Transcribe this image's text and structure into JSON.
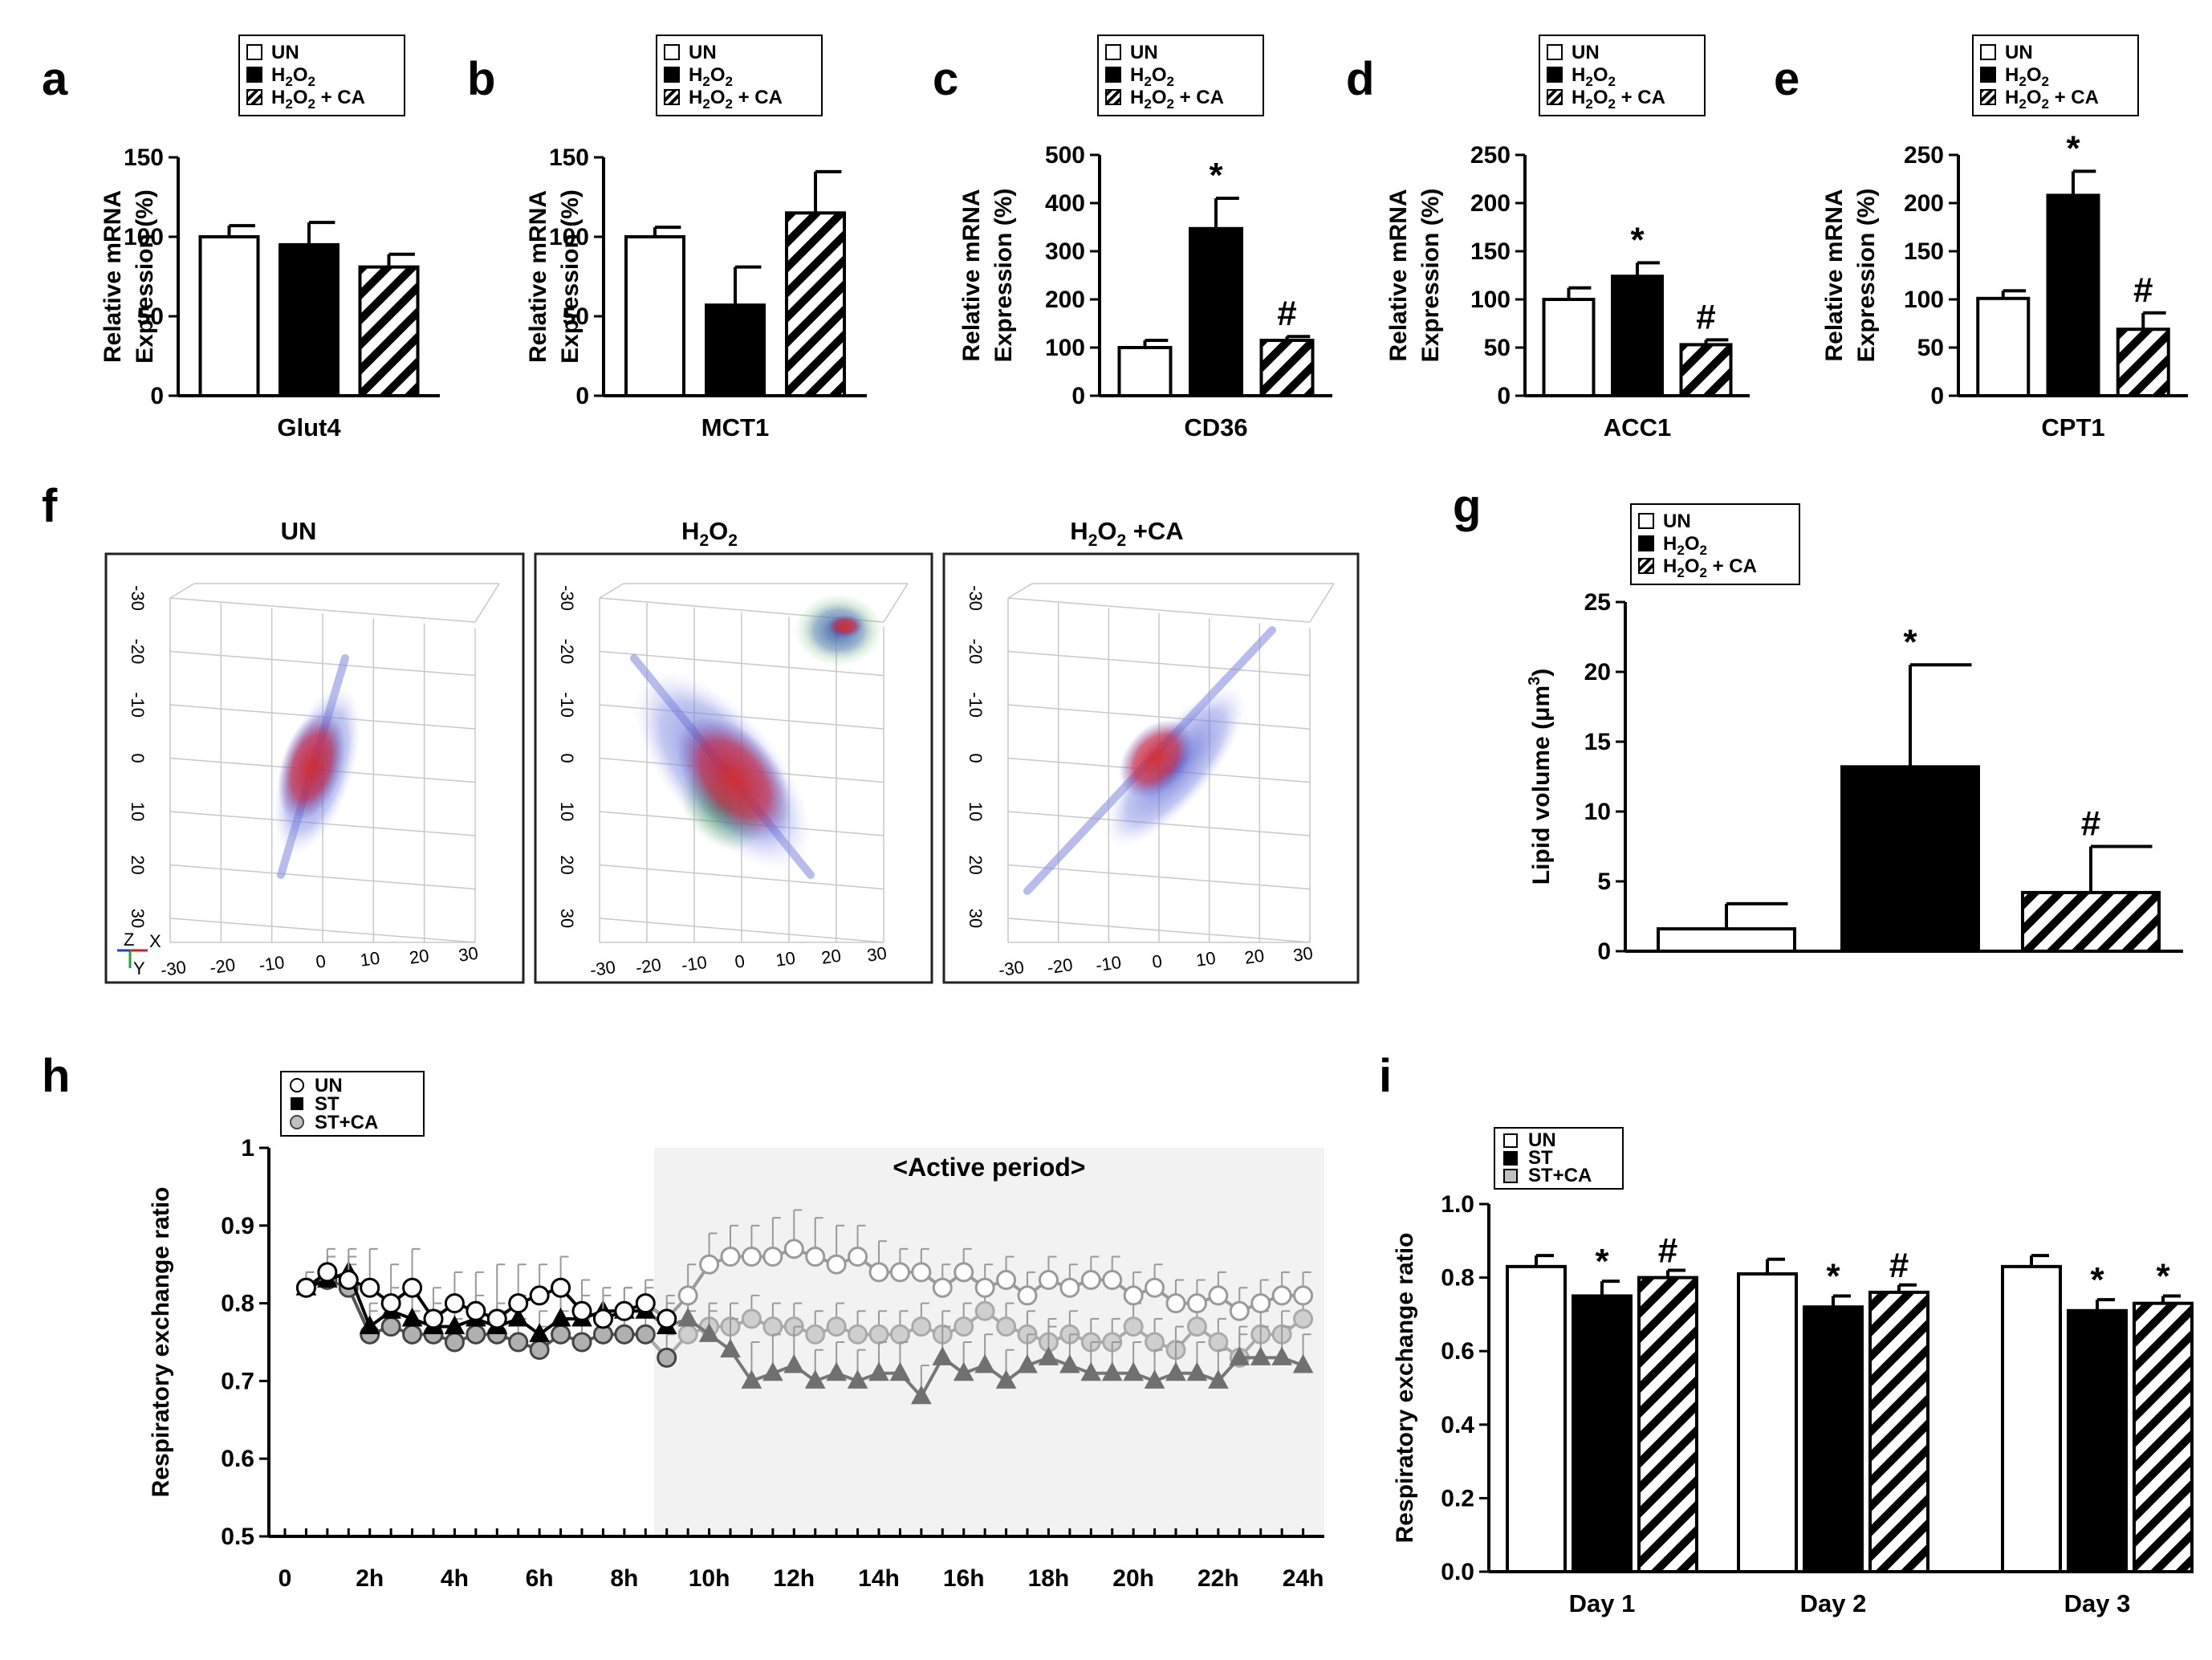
{
  "colors": {
    "UN": "#ffffff",
    "H2O2": "#000000",
    "H2O2+CA": "hatch",
    "ST": "#000000",
    "ST+CA": "#c0c0c0",
    "line_UN": "#9a9a9a",
    "line_ST": "#000000",
    "line_ST_CA": "#808080",
    "active_shade": "#f2f2f2",
    "lipid": "#d92020",
    "nucleus": "#3a4fd0",
    "mito": "#3aa040"
  },
  "legend_abcdeg": [
    {
      "key": "UN",
      "label": "UN"
    },
    {
      "key": "H2O2",
      "label": "H",
      "sub": "2",
      "rest": "O",
      "sub2": "2",
      "suffix": ""
    },
    {
      "key": "H2O2+CA",
      "label": "H",
      "sub": "2",
      "rest": "O",
      "sub2": "2",
      "suffix": " + CA"
    }
  ],
  "legend_hi": [
    {
      "key": "UN",
      "label": "UN"
    },
    {
      "key": "ST",
      "label": "ST"
    },
    {
      "key": "ST+CA",
      "label": "ST+CA"
    }
  ],
  "chart_data": [
    {
      "panel": "a",
      "type": "bar",
      "category": "Glut4",
      "ylabel_line1": "Relative mRNA",
      "ylabel_line2": "Expression (%)",
      "ylim": [
        0,
        150
      ],
      "yticks": [
        0,
        50,
        100,
        150
      ],
      "groups": [
        "UN",
        "H2O2",
        "H2O2+CA"
      ],
      "values": [
        100,
        95,
        81
      ],
      "errors": [
        7,
        14,
        8
      ],
      "annotations": [
        "",
        "",
        ""
      ]
    },
    {
      "panel": "b",
      "type": "bar",
      "category": "MCT1",
      "ylabel_line1": "Relative mRNA",
      "ylabel_line2": "Expression (%)",
      "ylim": [
        0,
        150
      ],
      "yticks": [
        0,
        50,
        100,
        150
      ],
      "groups": [
        "UN",
        "H2O2",
        "H2O2+CA"
      ],
      "values": [
        100,
        57,
        115
      ],
      "errors": [
        6,
        24,
        26
      ],
      "annotations": [
        "",
        "",
        ""
      ]
    },
    {
      "panel": "c",
      "type": "bar",
      "category": "CD36",
      "ylabel_line1": "Relative mRNA",
      "ylabel_line2": "Expression (%)",
      "ylim": [
        0,
        500
      ],
      "yticks": [
        0,
        100,
        200,
        300,
        400,
        500
      ],
      "groups": [
        "UN",
        "H2O2",
        "H2O2+CA"
      ],
      "values": [
        100,
        347,
        115
      ],
      "errors": [
        15,
        63,
        8
      ],
      "annotations": [
        "",
        "*",
        "#"
      ]
    },
    {
      "panel": "d",
      "type": "bar",
      "category": "ACC1",
      "ylabel_line1": "Relative mRNA",
      "ylabel_line2": "Expression (%)",
      "ylim": [
        0,
        250
      ],
      "yticks": [
        0,
        50,
        100,
        150,
        200,
        250
      ],
      "groups": [
        "UN",
        "H2O2",
        "H2O2+CA"
      ],
      "values": [
        100,
        124,
        53
      ],
      "errors": [
        12,
        14,
        5
      ],
      "annotations": [
        "",
        "*",
        "#"
      ]
    },
    {
      "panel": "e",
      "type": "bar",
      "category": "CPT1",
      "ylabel_line1": "Relative mRNA",
      "ylabel_line2": "Expression (%)",
      "ylim": [
        0,
        250
      ],
      "yticks": [
        0,
        50,
        100,
        150,
        200,
        250
      ],
      "groups": [
        "UN",
        "H2O2",
        "H2O2+CA"
      ],
      "values": [
        101,
        208,
        69
      ],
      "errors": [
        8,
        25,
        17
      ],
      "annotations": [
        "",
        "*",
        "#"
      ]
    },
    {
      "panel": "g",
      "type": "bar",
      "category": "",
      "ylabel_line1": "Lipid volume (μm",
      "ylabel_sup": "3",
      "ylabel_end": ")",
      "ylim": [
        0,
        25
      ],
      "yticks": [
        0,
        5,
        10,
        15,
        20,
        25
      ],
      "groups": [
        "UN",
        "H2O2",
        "H2O2+CA"
      ],
      "values": [
        1.6,
        13.2,
        4.2
      ],
      "errors": [
        1.8,
        7.3,
        3.3
      ],
      "annotations": [
        "",
        "*",
        "#"
      ]
    },
    {
      "panel": "h",
      "type": "line",
      "ylabel": "Respiratory exchange ratio",
      "ylim": [
        0.5,
        1.0
      ],
      "yticks": [
        "0.5",
        "0.6",
        "0.7",
        "0.8",
        "0.9",
        "1"
      ],
      "xlim": [
        0,
        24.5
      ],
      "xtick_values": [
        0,
        2,
        4,
        6,
        8,
        10,
        12,
        14,
        16,
        18,
        20,
        22,
        24
      ],
      "xtick_labels": [
        "0",
        "2h",
        "4h",
        "6h",
        "8h",
        "10h",
        "12h",
        "14h",
        "16h",
        "18h",
        "20h",
        "22h",
        "24h"
      ],
      "active_period": {
        "start": 8.7,
        "end": 24.5,
        "label": "<Active period>"
      },
      "series": [
        {
          "name": "UN",
          "marker": "circle-open",
          "x": [
            0.5,
            1,
            1.5,
            2,
            2.5,
            3,
            3.5,
            4,
            4.5,
            5,
            5.5,
            6,
            6.5,
            7,
            7.5,
            8,
            8.5,
            9,
            9.5,
            10,
            10.5,
            11,
            11.5,
            12,
            12.5,
            13,
            13.5,
            14,
            14.5,
            15,
            15.5,
            16,
            16.5,
            17,
            17.5,
            18,
            18.5,
            19,
            19.5,
            20,
            20.5,
            21,
            21.5,
            22,
            22.5,
            23,
            23.5,
            24
          ],
          "y": [
            0.82,
            0.84,
            0.83,
            0.82,
            0.8,
            0.82,
            0.78,
            0.8,
            0.79,
            0.78,
            0.8,
            0.81,
            0.82,
            0.79,
            0.78,
            0.79,
            0.8,
            0.78,
            0.81,
            0.85,
            0.86,
            0.86,
            0.86,
            0.87,
            0.86,
            0.85,
            0.86,
            0.84,
            0.84,
            0.84,
            0.82,
            0.84,
            0.82,
            0.83,
            0.81,
            0.83,
            0.82,
            0.83,
            0.83,
            0.81,
            0.82,
            0.8,
            0.8,
            0.81,
            0.79,
            0.8,
            0.81,
            0.81
          ],
          "err": [
            0.02,
            0.03,
            0.03,
            0.05,
            0.05,
            0.05,
            0.04,
            0.04,
            0.05,
            0.07,
            0.05,
            0.04,
            0.04,
            0.04,
            0.03,
            0.03,
            0.03,
            0.03,
            0.04,
            0.04,
            0.04,
            0.04,
            0.05,
            0.05,
            0.05,
            0.05,
            0.04,
            0.04,
            0.03,
            0.03,
            0.03,
            0.03,
            0.03,
            0.03,
            0.03,
            0.03,
            0.03,
            0.03,
            0.03,
            0.03,
            0.03,
            0.03,
            0.03,
            0.03,
            0.03,
            0.03,
            0.03,
            0.03
          ]
        },
        {
          "name": "ST",
          "marker": "triangle-filled",
          "x": [
            0.5,
            1,
            1.5,
            2,
            2.5,
            3,
            3.5,
            4,
            4.5,
            5,
            5.5,
            6,
            6.5,
            7,
            7.5,
            8,
            8.5,
            9,
            9.5,
            10,
            10.5,
            11,
            11.5,
            12,
            12.5,
            13,
            13.5,
            14,
            14.5,
            15,
            15.5,
            16,
            16.5,
            17,
            17.5,
            18,
            18.5,
            19,
            19.5,
            20,
            20.5,
            21,
            21.5,
            22,
            22.5,
            23,
            23.5,
            24
          ],
          "y": [
            0.82,
            0.83,
            0.84,
            0.77,
            0.79,
            0.78,
            0.77,
            0.77,
            0.78,
            0.77,
            0.78,
            0.76,
            0.78,
            0.78,
            0.79,
            0.79,
            0.79,
            0.77,
            0.78,
            0.76,
            0.74,
            0.7,
            0.71,
            0.72,
            0.7,
            0.71,
            0.7,
            0.71,
            0.71,
            0.68,
            0.73,
            0.71,
            0.72,
            0.7,
            0.72,
            0.73,
            0.72,
            0.71,
            0.71,
            0.71,
            0.7,
            0.71,
            0.71,
            0.7,
            0.73,
            0.73,
            0.73,
            0.72
          ],
          "err": [
            0.02,
            0.03,
            0.03,
            0.03,
            0.03,
            0.03,
            0.03,
            0.03,
            0.03,
            0.03,
            0.03,
            0.03,
            0.03,
            0.03,
            0.03,
            0.03,
            0.03,
            0.03,
            0.03,
            0.03,
            0.04,
            0.05,
            0.05,
            0.05,
            0.04,
            0.04,
            0.04,
            0.04,
            0.04,
            0.04,
            0.04,
            0.04,
            0.04,
            0.04,
            0.04,
            0.04,
            0.04,
            0.04,
            0.04,
            0.04,
            0.04,
            0.04,
            0.04,
            0.04,
            0.04,
            0.04,
            0.04,
            0.04
          ]
        },
        {
          "name": "ST+CA",
          "marker": "circle-gray",
          "x": [
            0.5,
            1,
            1.5,
            2,
            2.5,
            3,
            3.5,
            4,
            4.5,
            5,
            5.5,
            6,
            6.5,
            7,
            7.5,
            8,
            8.5,
            9,
            9.5,
            10,
            10.5,
            11,
            11.5,
            12,
            12.5,
            13,
            13.5,
            14,
            14.5,
            15,
            15.5,
            16,
            16.5,
            17,
            17.5,
            18,
            18.5,
            19,
            19.5,
            20,
            20.5,
            21,
            21.5,
            22,
            22.5,
            23,
            23.5,
            24
          ],
          "y": [
            0.82,
            0.83,
            0.82,
            0.76,
            0.77,
            0.76,
            0.76,
            0.75,
            0.76,
            0.76,
            0.75,
            0.74,
            0.76,
            0.75,
            0.76,
            0.76,
            0.76,
            0.73,
            0.76,
            0.77,
            0.77,
            0.78,
            0.77,
            0.77,
            0.76,
            0.77,
            0.76,
            0.76,
            0.76,
            0.77,
            0.76,
            0.77,
            0.79,
            0.77,
            0.76,
            0.75,
            0.76,
            0.75,
            0.75,
            0.77,
            0.75,
            0.74,
            0.77,
            0.75,
            0.73,
            0.76,
            0.76,
            0.78
          ],
          "err": [
            0.02,
            0.03,
            0.03,
            0.03,
            0.03,
            0.03,
            0.03,
            0.03,
            0.03,
            0.03,
            0.03,
            0.03,
            0.03,
            0.03,
            0.03,
            0.03,
            0.03,
            0.03,
            0.03,
            0.03,
            0.03,
            0.03,
            0.03,
            0.03,
            0.03,
            0.03,
            0.03,
            0.03,
            0.03,
            0.03,
            0.03,
            0.03,
            0.03,
            0.03,
            0.03,
            0.03,
            0.03,
            0.03,
            0.03,
            0.03,
            0.03,
            0.03,
            0.03,
            0.03,
            0.03,
            0.03,
            0.03,
            0.03
          ]
        }
      ]
    },
    {
      "panel": "i",
      "type": "bar",
      "ylabel": "Respiratory exchange ratio",
      "ylim": [
        0,
        1.0
      ],
      "yticks": [
        "0.0",
        "0.2",
        "0.4",
        "0.6",
        "0.8",
        "1.0"
      ],
      "categories": [
        "Day 1",
        "Day 2",
        "Day 3"
      ],
      "series": [
        {
          "name": "UN",
          "values": [
            0.83,
            0.81,
            0.83
          ],
          "errors": [
            0.03,
            0.04,
            0.03
          ],
          "annotations": [
            "",
            "",
            ""
          ]
        },
        {
          "name": "ST",
          "values": [
            0.75,
            0.72,
            0.71
          ],
          "errors": [
            0.04,
            0.03,
            0.03
          ],
          "annotations": [
            "*",
            "*",
            "*"
          ]
        },
        {
          "name": "ST+CA",
          "values": [
            0.8,
            0.76,
            0.73
          ],
          "errors": [
            0.02,
            0.02,
            0.02
          ],
          "annotations": [
            "#",
            "#",
            "*"
          ]
        }
      ]
    }
  ],
  "panel_f": {
    "letter": "f",
    "images": [
      {
        "title": "UN"
      },
      {
        "title_main": "H",
        "title_sub": "2",
        "title_rest": "O",
        "title_sub2": "2",
        "title_suffix": ""
      },
      {
        "title_main": "H",
        "title_sub": "2",
        "title_rest": "O",
        "title_sub2": "2",
        "title_suffix": " +CA"
      }
    ],
    "axis_ticks_vertical": [
      "-30",
      "-20",
      "-10",
      "0",
      "10",
      "20",
      "30"
    ],
    "axis_ticks_horizontal": [
      "-30",
      "-20",
      "-10",
      "0",
      "10",
      "20",
      "30"
    ],
    "orientation": {
      "x": "X",
      "y": "Y",
      "z": "Z"
    }
  },
  "panel_letters": [
    "a",
    "b",
    "c",
    "d",
    "e",
    "f",
    "g",
    "h",
    "i"
  ]
}
